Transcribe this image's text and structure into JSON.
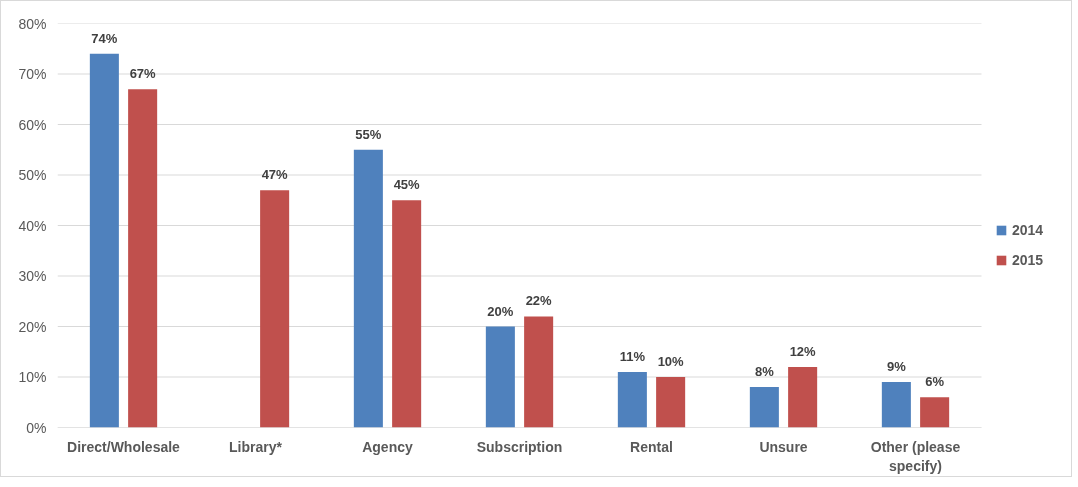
{
  "chart_data": {
    "type": "bar",
    "categories": [
      "Direct/Wholesale",
      "Library*",
      "Agency",
      "Subscription",
      "Rental",
      "Unsure",
      "Other (please specify)"
    ],
    "series": [
      {
        "name": "2014",
        "color": "#4f81bd",
        "values": [
          74,
          null,
          55,
          20,
          11,
          8,
          9
        ],
        "value_labels": [
          "74%",
          null,
          "55%",
          "20%",
          "11%",
          "8%",
          "9%"
        ]
      },
      {
        "name": "2015",
        "color": "#c0504d",
        "values": [
          67,
          47,
          45,
          22,
          10,
          12,
          6
        ],
        "value_labels": [
          "67%",
          "47%",
          "45%",
          "22%",
          "10%",
          "12%",
          "6%"
        ]
      }
    ],
    "ylim": [
      0,
      80
    ],
    "yticks": [
      {
        "value": 0,
        "label": "0%"
      },
      {
        "value": 10,
        "label": "10%"
      },
      {
        "value": 20,
        "label": "20%"
      },
      {
        "value": 30,
        "label": "30%"
      },
      {
        "value": 40,
        "label": "40%"
      },
      {
        "value": 50,
        "label": "50%"
      },
      {
        "value": 60,
        "label": "60%"
      },
      {
        "value": 70,
        "label": "70%"
      },
      {
        "value": 80,
        "label": "80%"
      }
    ],
    "grid": "y",
    "legend": "right"
  }
}
